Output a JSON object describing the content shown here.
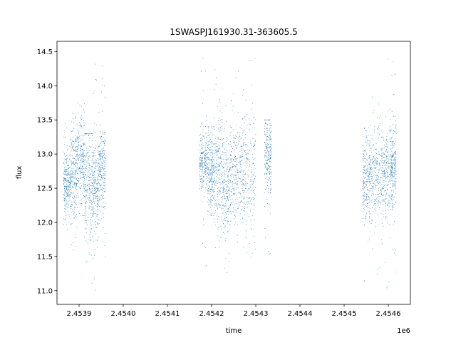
{
  "chart_data": {
    "type": "scatter",
    "title": "1SWASPJ161930.31-363605.5",
    "xlabel": "time",
    "ylabel": "flux",
    "x_offset_label": "1e6",
    "xlim": [
      2453850,
      2454650
    ],
    "ylim": [
      10.8,
      14.65
    ],
    "x_ticks": [
      2453900,
      2454000,
      2454100,
      2454200,
      2454300,
      2454400,
      2454500,
      2454600
    ],
    "x_tick_labels": [
      "2.4539",
      "2.4540",
      "2.4541",
      "2.4542",
      "2.4543",
      "2.4544",
      "2.4545",
      "2.4546"
    ],
    "y_ticks": [
      11.0,
      11.5,
      12.0,
      12.5,
      13.0,
      13.5,
      14.0,
      14.5
    ],
    "y_tick_labels": [
      "11.0",
      "11.5",
      "12.0",
      "12.5",
      "13.0",
      "13.5",
      "14.0",
      "14.5"
    ],
    "grid": false,
    "point_color": "#1f77b4",
    "clusters": [
      {
        "x_start": 2453865,
        "x_end": 2453880,
        "y_center": 12.55,
        "y_spread": 0.25,
        "y_min": 11.9,
        "y_max": 13.5
      },
      {
        "x_start": 2453880,
        "x_end": 2453895,
        "y_center": 12.7,
        "y_spread": 0.35,
        "y_min": 11.6,
        "y_max": 13.6
      },
      {
        "x_start": 2453895,
        "x_end": 2453912,
        "y_center": 12.9,
        "y_spread": 0.3,
        "y_min": 12.1,
        "y_max": 13.9
      },
      {
        "x_start": 2453912,
        "x_end": 2453930,
        "y_center": 12.6,
        "y_spread": 0.45,
        "y_min": 11.1,
        "y_max": 13.3
      },
      {
        "x_start": 2453930,
        "x_end": 2453945,
        "y_center": 12.5,
        "y_spread": 0.35,
        "y_min": 11.0,
        "y_max": 14.4
      },
      {
        "x_start": 2453945,
        "x_end": 2453960,
        "y_center": 12.75,
        "y_spread": 0.3,
        "y_min": 11.3,
        "y_max": 14.3
      },
      {
        "x_start": 2454172,
        "x_end": 2454190,
        "y_center": 12.9,
        "y_spread": 0.2,
        "y_min": 11.3,
        "y_max": 14.5
      },
      {
        "x_start": 2454190,
        "x_end": 2454205,
        "y_center": 12.75,
        "y_spread": 0.3,
        "y_min": 12.1,
        "y_max": 13.4
      },
      {
        "x_start": 2454205,
        "x_end": 2454225,
        "y_center": 12.7,
        "y_spread": 0.4,
        "y_min": 11.4,
        "y_max": 14.3
      },
      {
        "x_start": 2454225,
        "x_end": 2454245,
        "y_center": 12.55,
        "y_spread": 0.35,
        "y_min": 11.1,
        "y_max": 14.2
      },
      {
        "x_start": 2454245,
        "x_end": 2454270,
        "y_center": 12.8,
        "y_spread": 0.35,
        "y_min": 11.05,
        "y_max": 14.5
      },
      {
        "x_start": 2454270,
        "x_end": 2454300,
        "y_center": 12.75,
        "y_spread": 0.4,
        "y_min": 11.4,
        "y_max": 14.4
      },
      {
        "x_start": 2454320,
        "x_end": 2454335,
        "y_center": 13.0,
        "y_spread": 0.3,
        "y_min": 11.5,
        "y_max": 13.5
      },
      {
        "x_start": 2454542,
        "x_end": 2454560,
        "y_center": 12.6,
        "y_spread": 0.3,
        "y_min": 11.1,
        "y_max": 13.6
      },
      {
        "x_start": 2454560,
        "x_end": 2454585,
        "y_center": 12.75,
        "y_spread": 0.35,
        "y_min": 11.1,
        "y_max": 14.0
      },
      {
        "x_start": 2454585,
        "x_end": 2454605,
        "y_center": 12.7,
        "y_spread": 0.35,
        "y_min": 11.0,
        "y_max": 14.5
      },
      {
        "x_start": 2454605,
        "x_end": 2454618,
        "y_center": 12.8,
        "y_spread": 0.3,
        "y_min": 11.2,
        "y_max": 14.45
      }
    ]
  }
}
